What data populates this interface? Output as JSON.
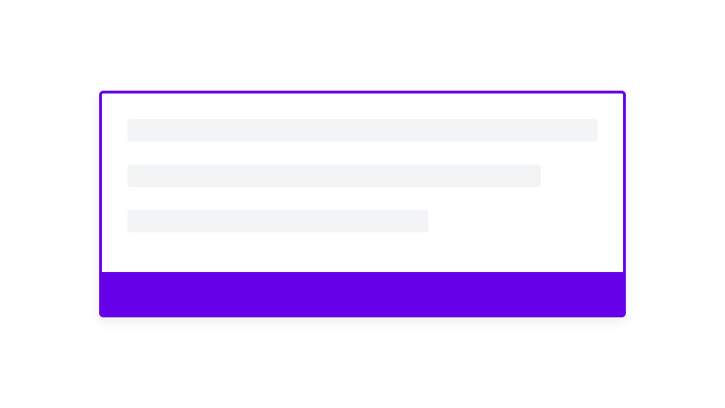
{
  "colors": {
    "accent": "#6600e9",
    "skeleton": "#f3f4f6",
    "background": "#ffffff"
  },
  "skeleton_lines": [
    {
      "width_fraction": 1.0
    },
    {
      "width_fraction": 0.88
    },
    {
      "width_fraction": 0.64
    }
  ]
}
